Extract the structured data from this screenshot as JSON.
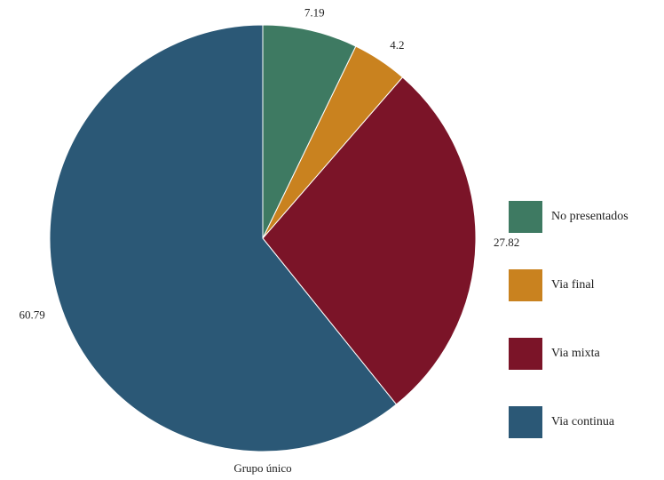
{
  "chart_data": {
    "type": "pie",
    "xlabel": "Grupo único",
    "start_angle_deg": -90,
    "direction": "counterclockwise",
    "slices": [
      {
        "label": "Via continua",
        "value": 60.79,
        "display": "60.79",
        "color": "#2b5876"
      },
      {
        "label": "Via mixta",
        "value": 27.82,
        "display": "27.82",
        "color": "#7b1428"
      },
      {
        "label": "Via final",
        "value": 4.2,
        "display": "4.2",
        "color": "#c9821f"
      },
      {
        "label": "No presentados",
        "value": 7.19,
        "display": "7.19",
        "color": "#3e7a62"
      }
    ],
    "legend": {
      "position": "right",
      "order": [
        "No presentados",
        "Via final",
        "Via mixta",
        "Via continua"
      ]
    }
  }
}
